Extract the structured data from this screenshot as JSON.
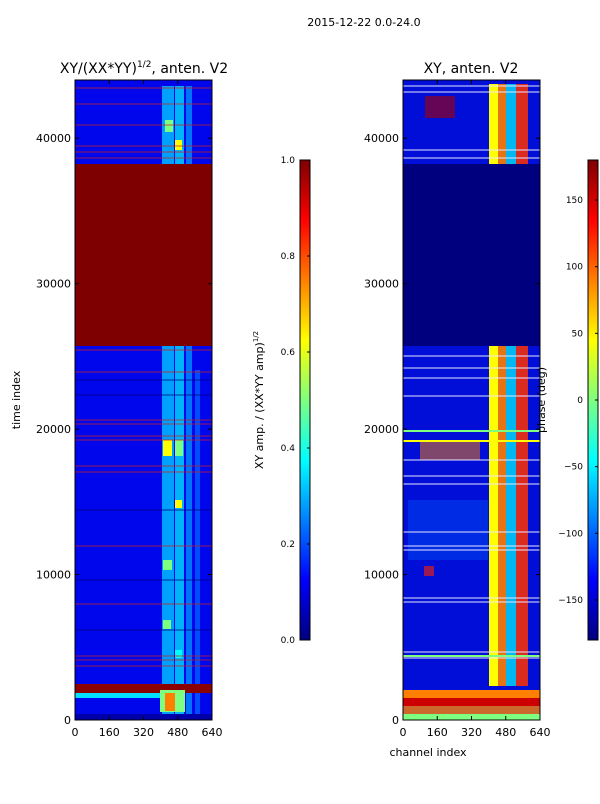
{
  "suptitle": "2015-12-22 0.0-24.0",
  "colors": {
    "jet": [
      "#00007f",
      "#0000ff",
      "#007fff",
      "#00ffff",
      "#7fff7f",
      "#ffff00",
      "#ff7f00",
      "#ff0000",
      "#7f0000"
    ],
    "frame": "#000000",
    "background": "#ffffff"
  },
  "chart_data": [
    {
      "type": "heatmap",
      "title": "XY/(XX*YY)",
      "title_exponent": "1/2",
      "title_suffix": ", anten. V2",
      "xlabel": "",
      "ylabel": "time index",
      "xlim": [
        0,
        640
      ],
      "ylim": [
        0,
        44000
      ],
      "xticks": [
        0,
        160,
        320,
        480,
        640
      ],
      "xtick_labels": [
        "0",
        "160",
        "320",
        "480",
        "640"
      ],
      "yticks": [
        0,
        10000,
        20000,
        30000,
        40000
      ],
      "ytick_labels": [
        "0",
        "10000",
        "20000",
        "30000",
        "40000"
      ],
      "colorbar": {
        "label": "XY amp. / (XX*YY amp)",
        "label_exponent": "1/2",
        "range": [
          0.0,
          1.0
        ],
        "ticks": [
          0.0,
          0.2,
          0.4,
          0.6,
          0.8,
          1.0
        ],
        "tick_labels": [
          "0.0",
          "0.2",
          "0.4",
          "0.6",
          "0.8",
          "1.0"
        ]
      },
      "saturated_bands": [
        [
          25500,
          38000
        ],
        [
          1900,
          2500
        ]
      ],
      "bright_channel_band": [
        360,
        500
      ]
    },
    {
      "type": "heatmap",
      "title": "XY, anten. V2",
      "xlabel": "channel index",
      "ylabel": "",
      "xlim": [
        0,
        640
      ],
      "ylim": [
        0,
        44000
      ],
      "xticks": [
        0,
        160,
        320,
        480,
        640
      ],
      "xtick_labels": [
        "0",
        "160",
        "320",
        "480",
        "640"
      ],
      "yticks": [
        0,
        10000,
        20000,
        30000,
        40000
      ],
      "ytick_labels": [
        "0",
        "10000",
        "20000",
        "30000",
        "40000"
      ],
      "colorbar": {
        "label": "phase (deg)",
        "range": [
          -180,
          180
        ],
        "ticks": [
          -150,
          -100,
          -50,
          0,
          50,
          100,
          150
        ],
        "tick_labels": [
          "−150",
          "−100",
          "−50",
          "0",
          "50",
          "100",
          "150"
        ]
      },
      "flat_band": [
        25500,
        38000
      ],
      "bright_channel_band": [
        400,
        500
      ]
    }
  ]
}
